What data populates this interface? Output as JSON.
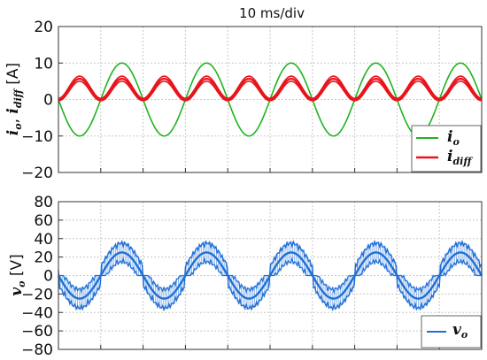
{
  "chart_data": [
    {
      "type": "line",
      "title": "10 ms/div",
      "ylabel_parts": {
        "v1": "i",
        "s1": "o",
        "sep": ", ",
        "v2": "i",
        "s2": "diff",
        "unit": " [A]"
      },
      "ylim": [
        -20,
        20
      ],
      "yticks": [
        "20",
        "10",
        "0",
        "−10",
        "−20"
      ],
      "xlim_ms": [
        0,
        100
      ],
      "x_divisions": 10,
      "grid": true,
      "legend_position": "bottom-right",
      "series": [
        {
          "name": "i_o",
          "legend_main": "i",
          "legend_sub": "o",
          "color": "#1fb31f",
          "amplitude": 10,
          "frequency_hz": 50,
          "phase": "-sin"
        },
        {
          "name": "i_diff",
          "legend_main": "i",
          "legend_sub": "diff",
          "color": "#e8141c",
          "amplitude": 5.7,
          "offset": 0.3,
          "frequency_hz": 100,
          "phase": "-cos+1",
          "ripple": 0.7
        }
      ]
    },
    {
      "type": "line",
      "ylabel_parts": {
        "v1": "v",
        "s1": "o",
        "unit": " [V]"
      },
      "ylim": [
        -80,
        80
      ],
      "yticks": [
        "80",
        "60",
        "40",
        "20",
        "0",
        "−20",
        "−40",
        "−60",
        "−80"
      ],
      "xlim_ms": [
        0,
        100
      ],
      "x_divisions": 10,
      "grid": true,
      "legend_position": "bottom-right",
      "series": [
        {
          "name": "v_o",
          "legend_main": "v",
          "legend_sub": "o",
          "color": "#1f6fd6",
          "amplitude": 25,
          "frequency_hz": 50,
          "phase": "-sin",
          "pwm_envelope": [
            10,
            40
          ]
        }
      ]
    }
  ]
}
